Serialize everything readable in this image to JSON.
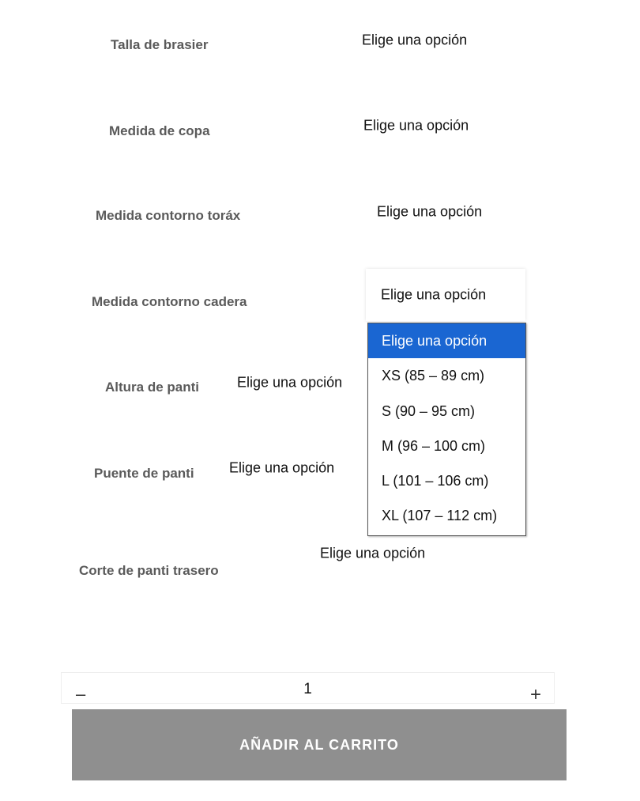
{
  "attributes": [
    {
      "label": "Talla de brasier",
      "value": "Elige una opción"
    },
    {
      "label": "Medida de copa",
      "value": "Elige una opción"
    },
    {
      "label": "Medida contorno toráx",
      "value": "Elige una opción"
    },
    {
      "label": "Medida contorno cadera",
      "value": "Elige una opción"
    },
    {
      "label": "Altura de panti",
      "value": "Elige una opción"
    },
    {
      "label": "Puente de panti",
      "value": "Elige una opción"
    },
    {
      "label": "Corte de panti trasero",
      "value": "Elige una opción"
    }
  ],
  "dropdown": {
    "selected": "Elige una opción",
    "options": [
      "Elige una opción",
      "XS (85 – 89 cm)",
      "S (90 – 95 cm)",
      "M (96 – 100 cm)",
      "L (101 – 106 cm)",
      "XL (107 – 112 cm)"
    ],
    "highlight_color": "#1a66d2"
  },
  "quantity": {
    "minus": "–",
    "value": "1",
    "plus": "+"
  },
  "cart_button": {
    "label": "AÑADIR AL CARRITO",
    "color": "#8f8f8f"
  }
}
